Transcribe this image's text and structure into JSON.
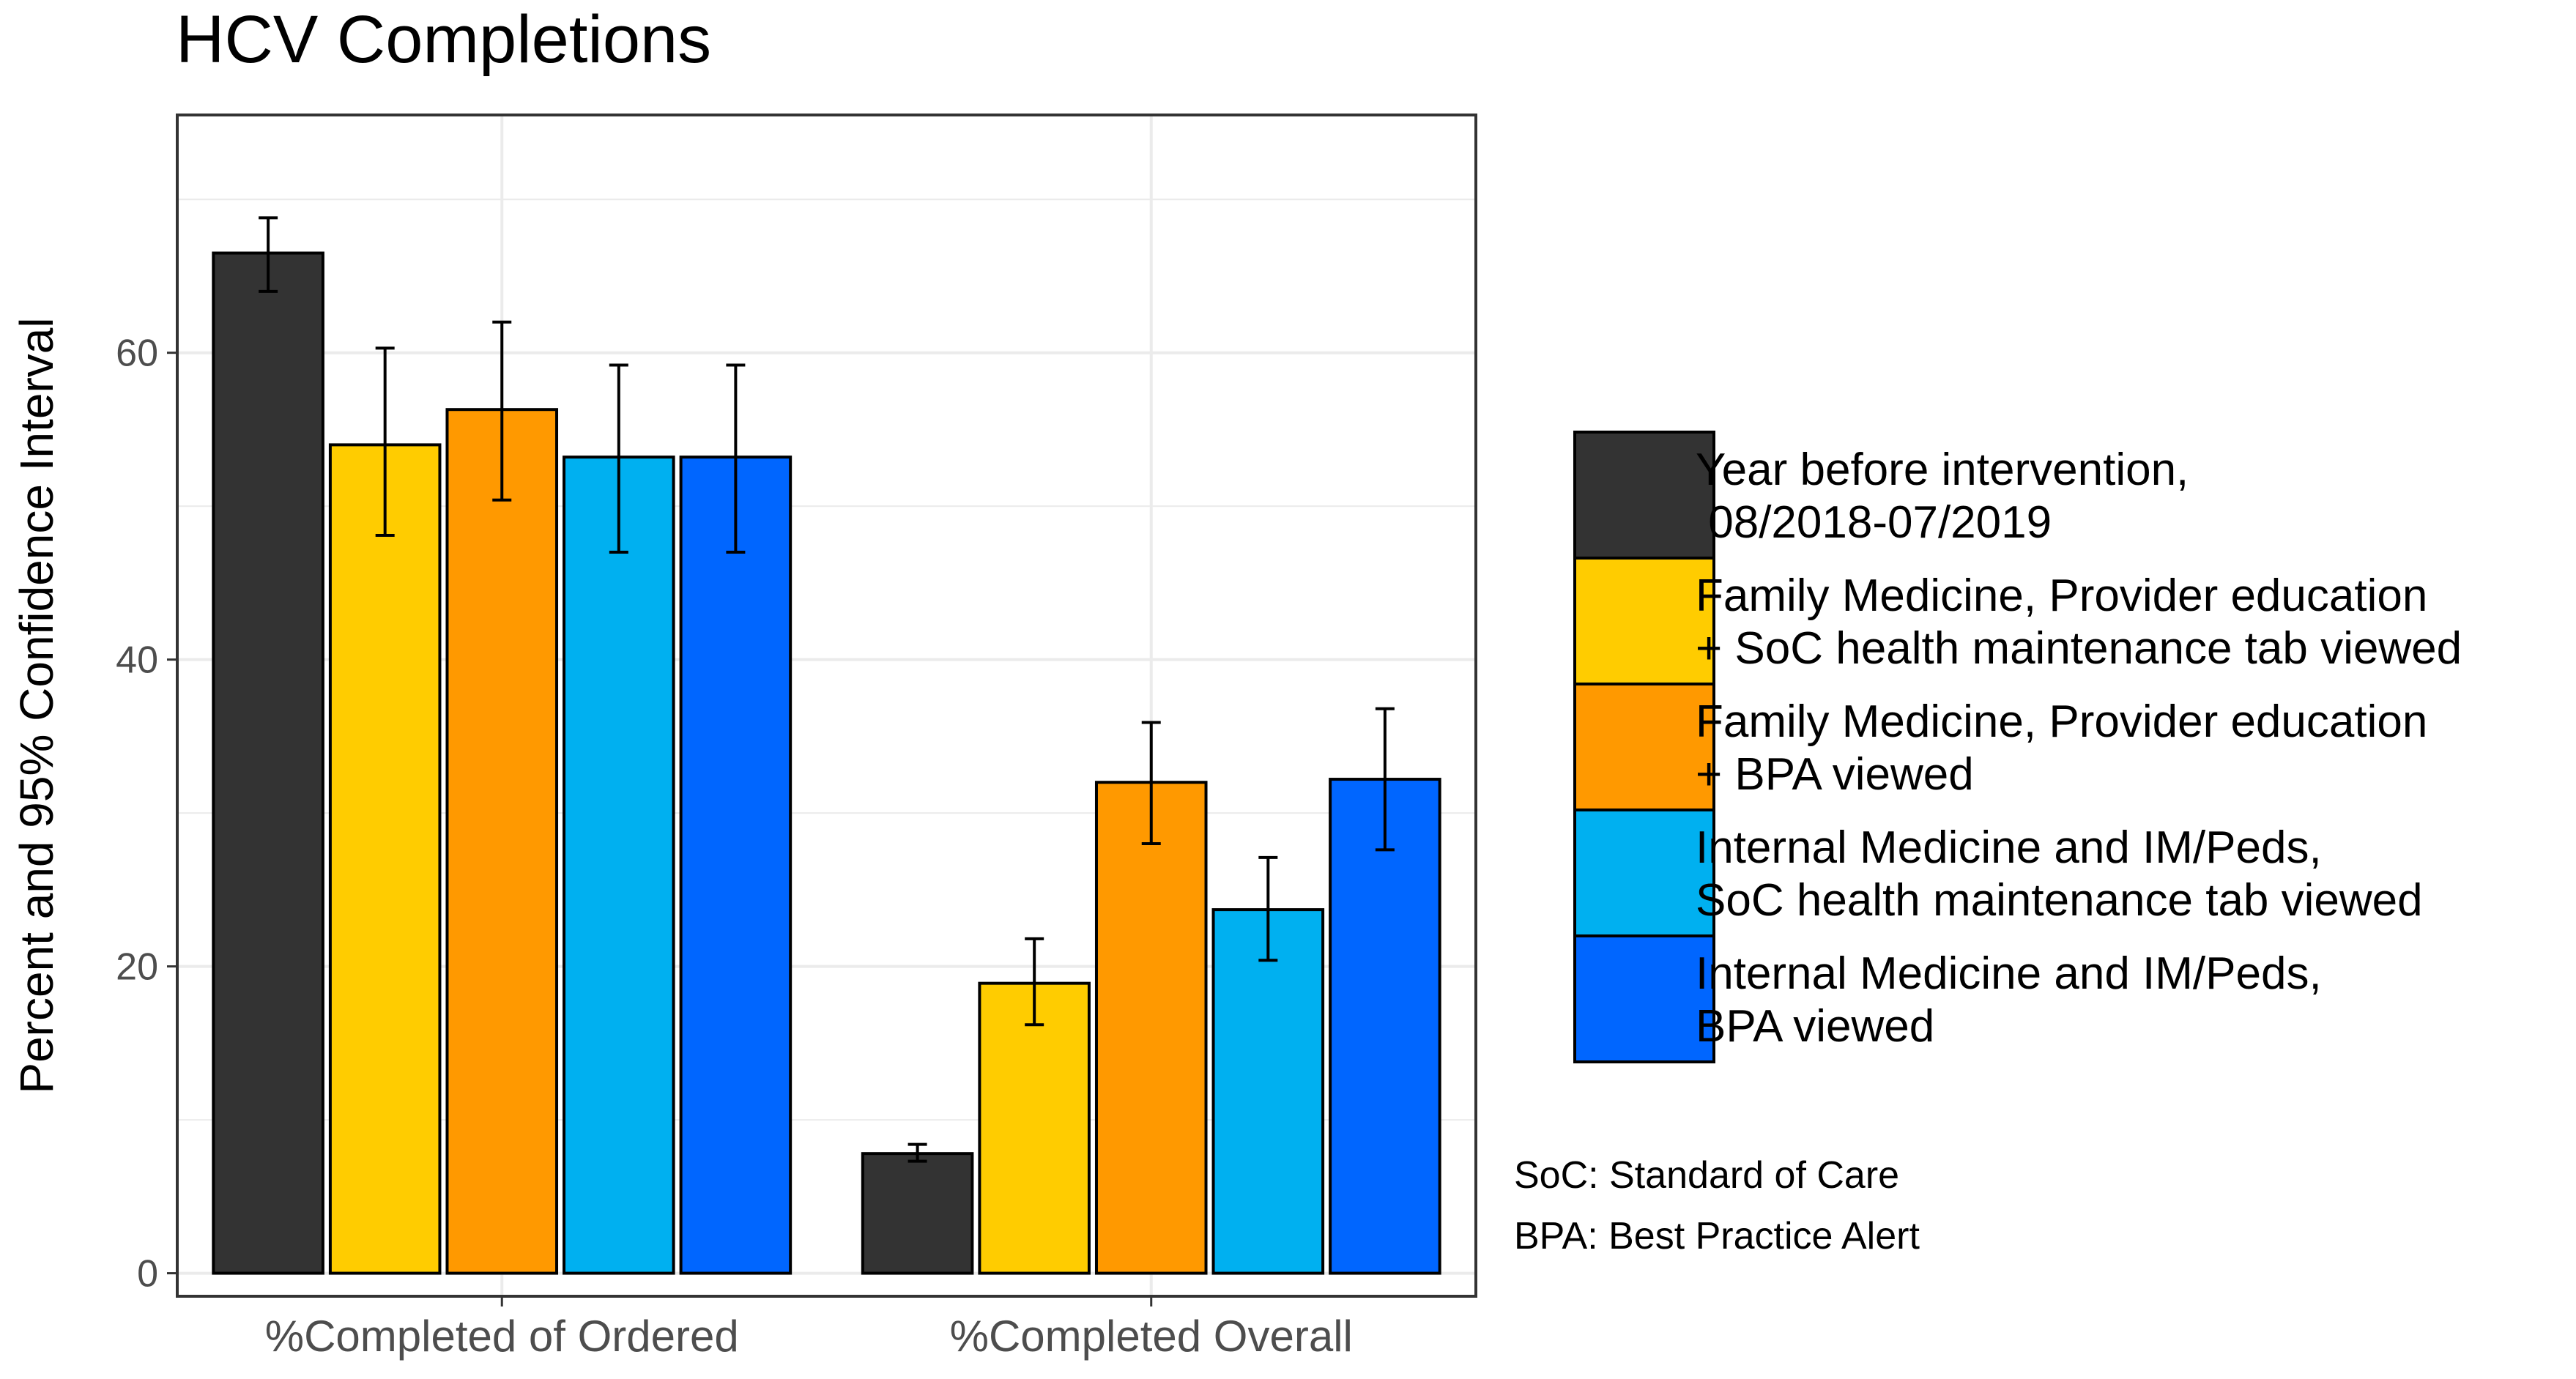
{
  "chart_data": {
    "type": "bar",
    "title": "HCV Completions",
    "xlabel": "",
    "ylabel": "Percent and 95% Confidence Interval",
    "ylim": [
      -1.5,
      75.5
    ],
    "yticks": [
      0,
      20,
      40,
      60
    ],
    "grid": true,
    "legend_position": "right",
    "categories": [
      "%Completed of Ordered",
      "%Completed Overall"
    ],
    "series": [
      {
        "name": "Year before intervention,\n 08/2018-07/2019",
        "color": "#333333",
        "values": [
          66.5,
          7.8
        ],
        "ci_low": [
          64.0,
          7.3
        ],
        "ci_high": [
          68.8,
          8.4
        ]
      },
      {
        "name": "Family Medicine, Provider education\n+ SoC health maintenance tab viewed",
        "color": "#ffcc00",
        "values": [
          54.0,
          18.9
        ],
        "ci_low": [
          48.1,
          16.2
        ],
        "ci_high": [
          60.3,
          21.8
        ]
      },
      {
        "name": "Family Medicine, Provider education\n+ BPA viewed",
        "color": "#ff9900",
        "values": [
          56.3,
          32.0
        ],
        "ci_low": [
          50.4,
          28.0
        ],
        "ci_high": [
          62.0,
          35.9
        ]
      },
      {
        "name": "Internal Medicine and IM/Peds,\nSoC health maintenance tab viewed",
        "color": "#00b0f0",
        "values": [
          53.2,
          23.7
        ],
        "ci_low": [
          47.0,
          20.4
        ],
        "ci_high": [
          59.2,
          27.1
        ]
      },
      {
        "name": "Internal Medicine and IM/Peds,\nBPA viewed",
        "color": "#0066ff",
        "values": [
          53.2,
          32.2
        ],
        "ci_low": [
          47.0,
          27.6
        ],
        "ci_high": [
          59.2,
          36.8
        ]
      }
    ],
    "annotations": [
      "SoC: Standard of Care",
      "BPA: Best Practice Alert"
    ]
  }
}
